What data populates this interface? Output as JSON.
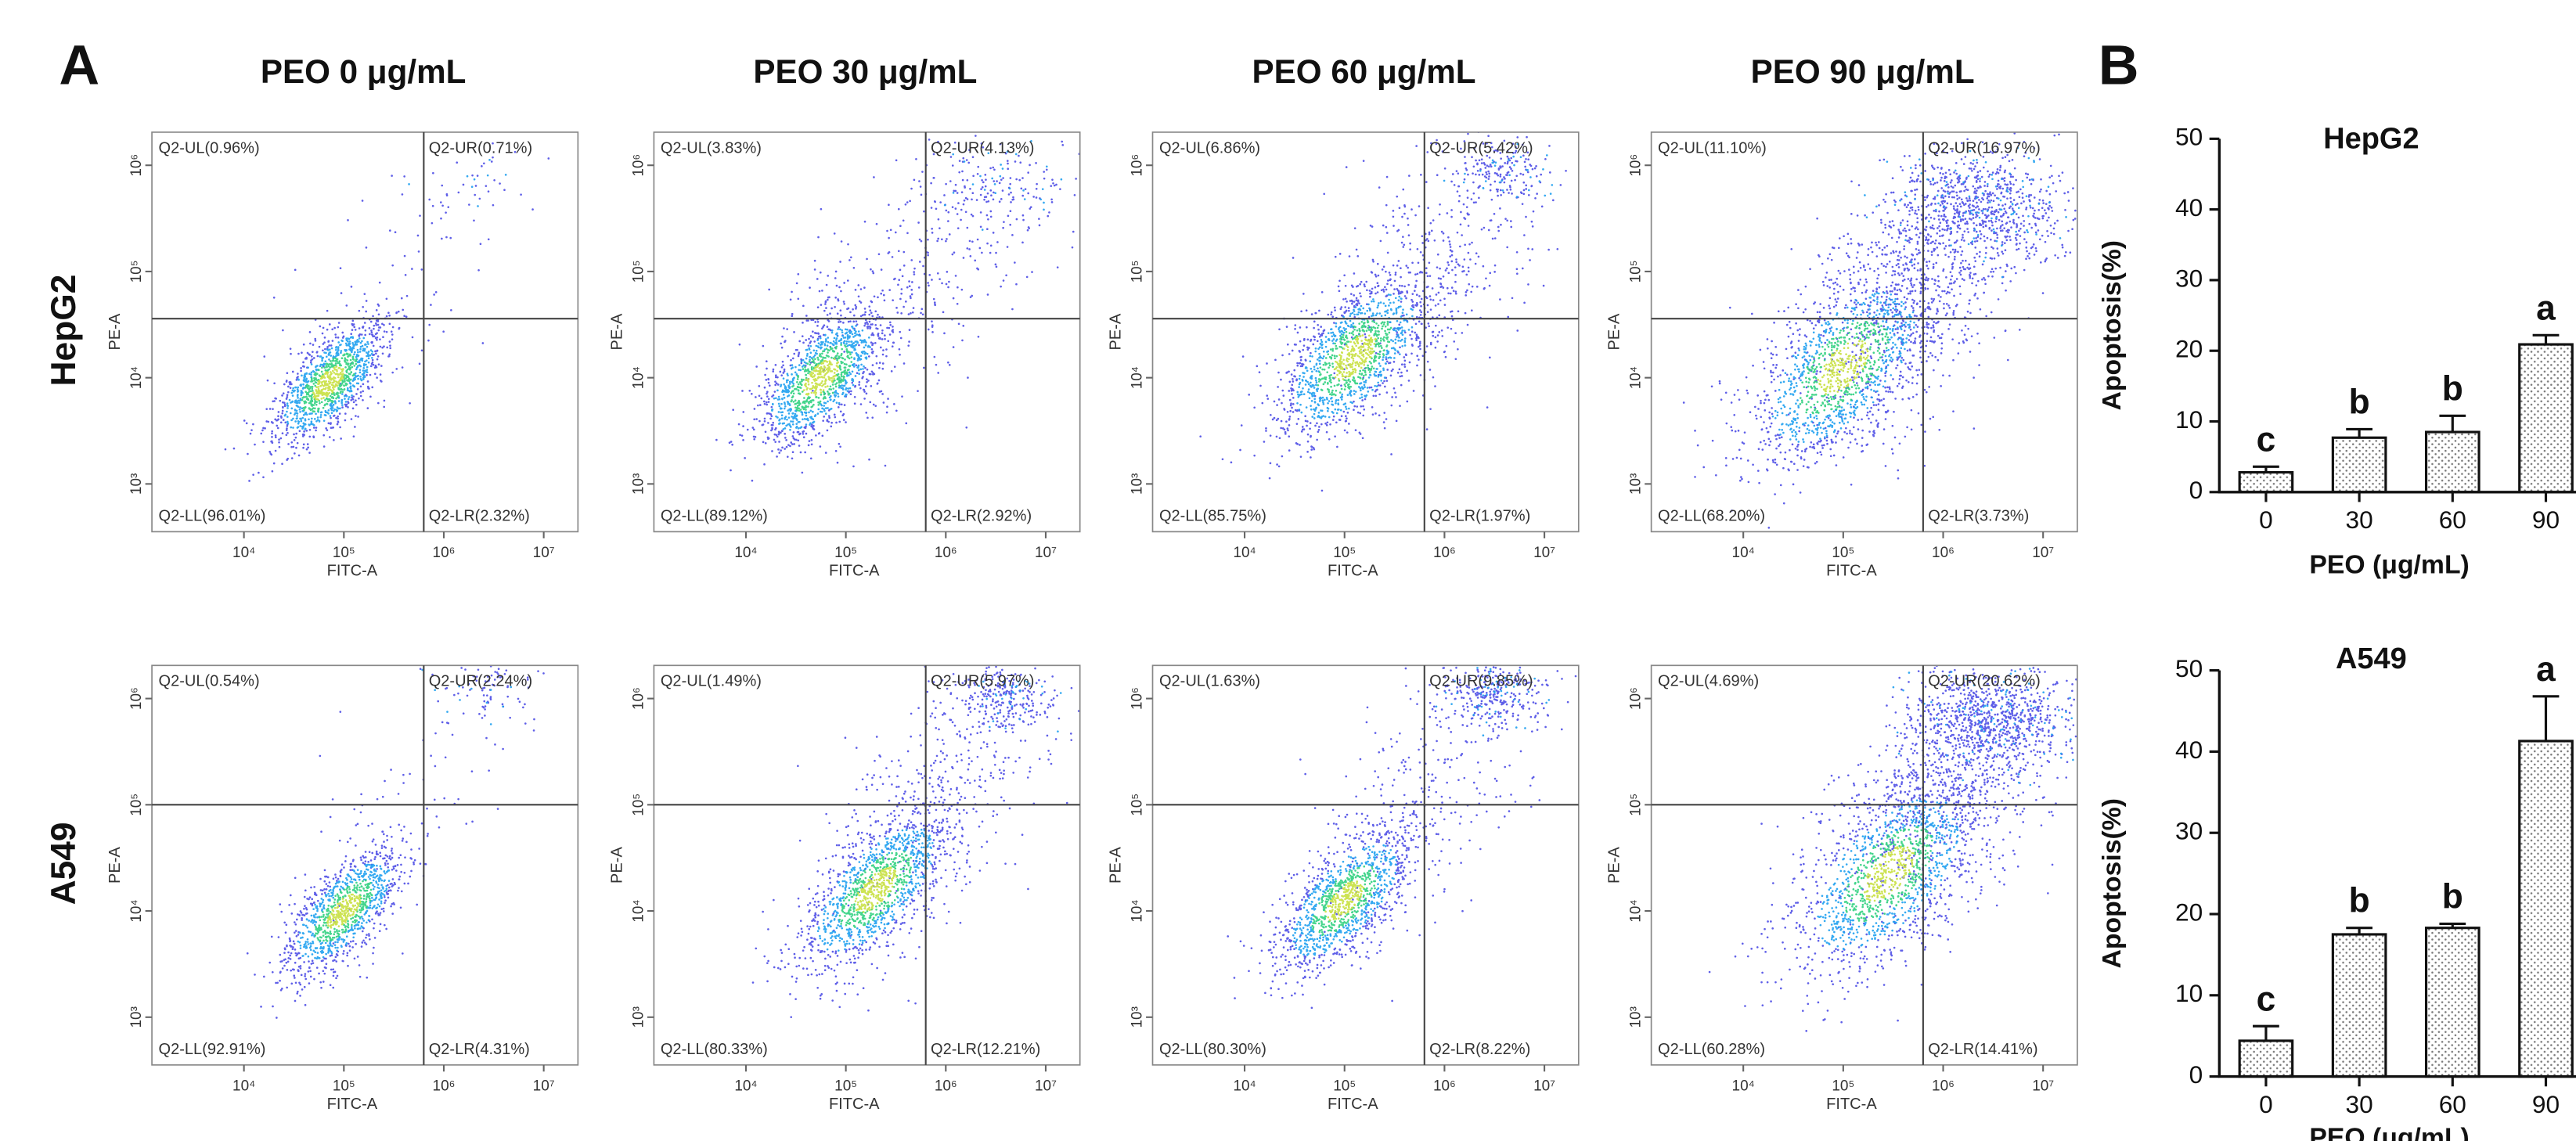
{
  "panel_labels": [
    "A",
    "B"
  ],
  "column_titles": [
    "PEO 0 μg/mL",
    "PEO 30 μg/mL",
    "PEO 60 μg/mL",
    "PEO 90 μg/mL"
  ],
  "flow_axes": {
    "type": "scatter",
    "x_label": "FITC-A",
    "y_label": "PE-A",
    "log_scale": true,
    "xlim": [
      1200,
      22000000
    ],
    "ylim": [
      355,
      2050000
    ],
    "xticks": [
      {
        "value": 10000,
        "label": "10⁴"
      },
      {
        "value": 100000,
        "label": "10⁵"
      },
      {
        "value": 1000000,
        "label": "10⁶"
      },
      {
        "value": 10000000,
        "label": "10⁷"
      }
    ],
    "yticks": [
      {
        "value": 1000,
        "label": "10³"
      },
      {
        "value": 10000,
        "label": "10⁴"
      },
      {
        "value": 100000,
        "label": "10⁵"
      },
      {
        "value": 1000000,
        "label": "10⁶"
      }
    ]
  },
  "rows": [
    {
      "label": "HepG2",
      "gate_x": 630000,
      "gate_y": 36000,
      "panels": [
        {
          "UL": "Q2-UL(0.96%)",
          "UR": "Q2-UR(0.71%)",
          "LL": "Q2-LL(96.01%)",
          "LR": "Q2-LR(2.32%)"
        },
        {
          "UL": "Q2-UL(3.83%)",
          "UR": "Q2-UR(4.13%)",
          "LL": "Q2-LL(89.12%)",
          "LR": "Q2-LR(2.92%)"
        },
        {
          "UL": "Q2-UL(6.86%)",
          "UR": "Q2-UR(5.42%)",
          "LL": "Q2-LL(85.75%)",
          "LR": "Q2-LR(1.97%)"
        },
        {
          "UL": "Q2-UL(11.10%)",
          "UR": "Q2-UR(16.97%)",
          "LL": "Q2-LL(68.20%)",
          "LR": "Q2-LR(3.73%)"
        }
      ]
    },
    {
      "label": "A549",
      "gate_x": 630000,
      "gate_y": 100000,
      "panels": [
        {
          "UL": "Q2-UL(0.54%)",
          "UR": "Q2-UR(2.24%)",
          "LL": "Q2-LL(92.91%)",
          "LR": "Q2-LR(4.31%)"
        },
        {
          "UL": "Q2-UL(1.49%)",
          "UR": "Q2-UR(5.97%)",
          "LL": "Q2-LL(80.33%)",
          "LR": "Q2-LR(12.21%)"
        },
        {
          "UL": "Q2-UL(1.63%)",
          "UR": "Q2-UR(9.85%)",
          "LL": "Q2-LL(80.30%)",
          "LR": "Q2-LR(8.22%)"
        },
        {
          "UL": "Q2-UL(4.69%)",
          "UR": "Q2-UR(20.62%)",
          "LL": "Q2-LL(60.28%)",
          "LR": "Q2-LR(14.41%)"
        }
      ]
    }
  ],
  "chart_data": [
    {
      "type": "bar",
      "title": "HepG2",
      "x_label": "PEO (μg/mL)",
      "y_label": "Apoptosis(%)",
      "categories": [
        "0",
        "30",
        "60",
        "90"
      ],
      "values": [
        2.8,
        7.7,
        8.5,
        20.9
      ],
      "errors": [
        0.8,
        1.2,
        2.3,
        1.3
      ],
      "annotations": [
        "c",
        "b",
        "b",
        "a"
      ],
      "ylim": [
        0,
        50
      ],
      "yticks": [
        0,
        10,
        20,
        30,
        40,
        50
      ],
      "color": "#ffffff"
    },
    {
      "type": "bar",
      "title": "A549",
      "x_label": "PEO (μg/mL)",
      "y_label": "Apoptosis(%)",
      "categories": [
        "0",
        "30",
        "60",
        "90"
      ],
      "values": [
        4.4,
        17.5,
        18.3,
        41.3
      ],
      "errors": [
        1.8,
        0.8,
        0.5,
        5.5
      ],
      "annotations": [
        "c",
        "b",
        "b",
        "a"
      ],
      "ylim": [
        0,
        50
      ],
      "yticks": [
        0,
        10,
        20,
        30,
        40,
        50
      ],
      "color": "#ffffff"
    }
  ]
}
